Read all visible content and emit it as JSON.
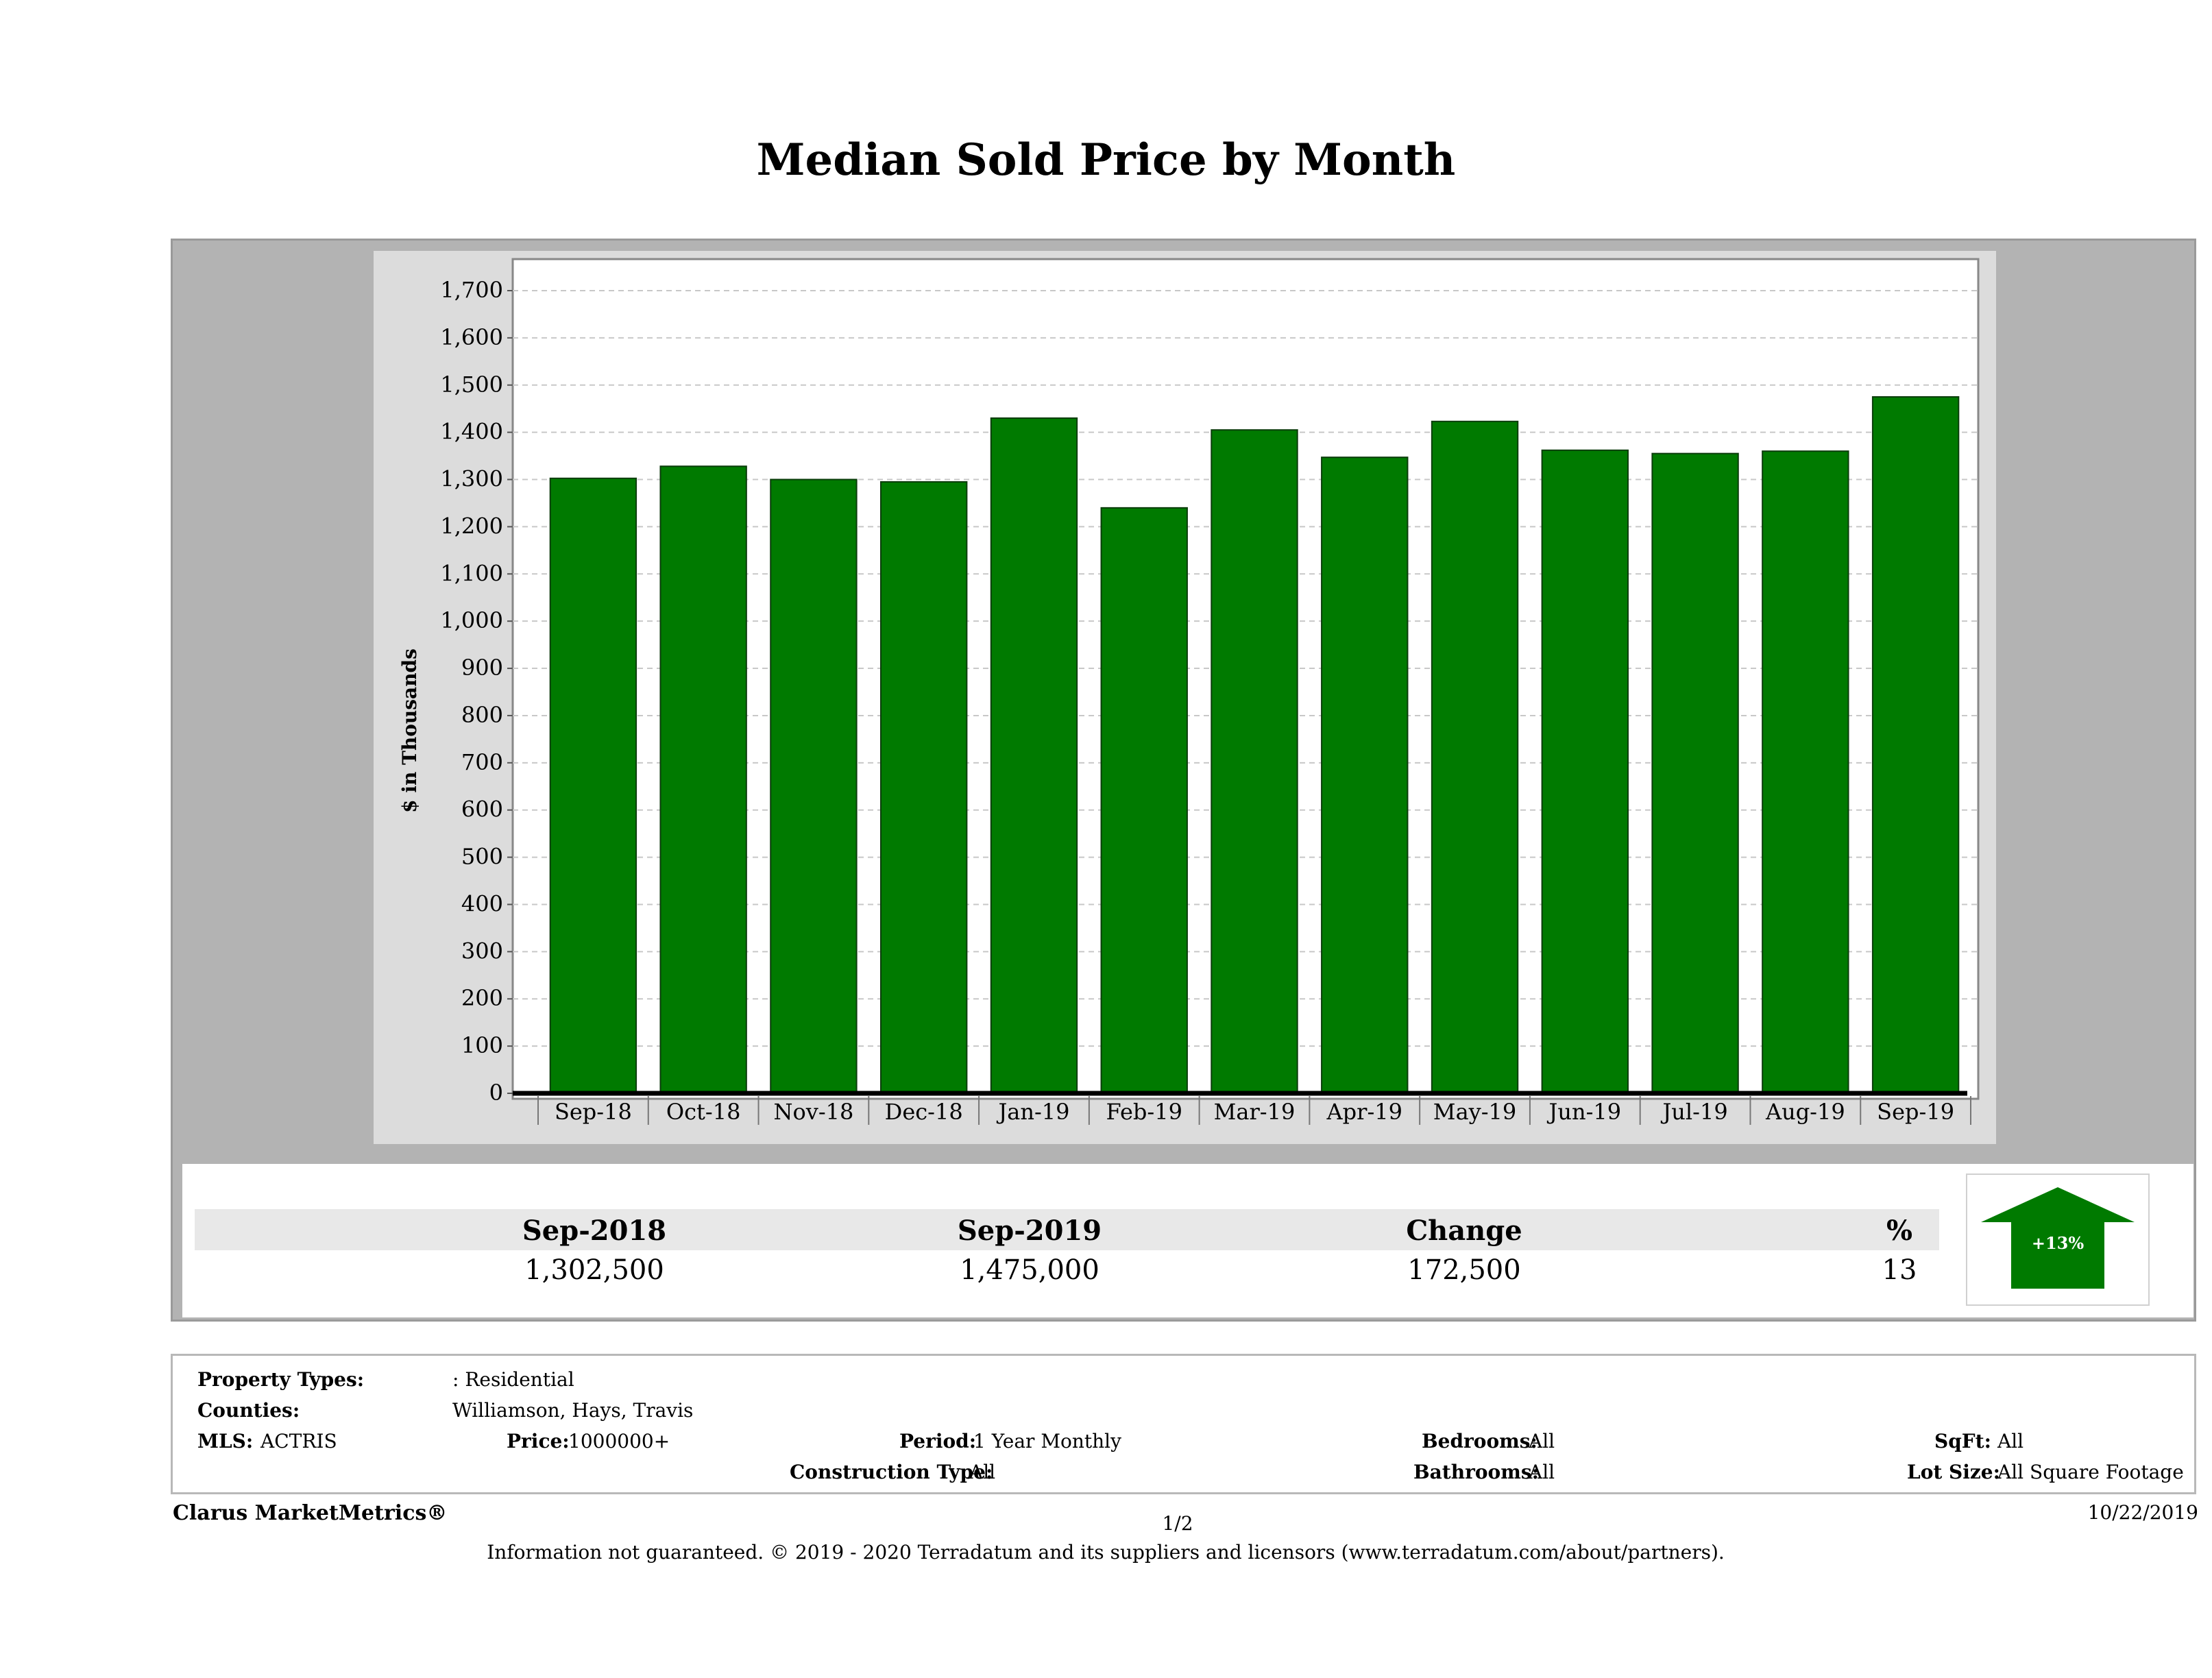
{
  "title": "Median Sold Price by Month",
  "chart_data": {
    "type": "bar",
    "title": "Median Sold Price by Month",
    "ylabel": "$ in Thousands",
    "xlabel": "",
    "categories": [
      "Sep-18",
      "Oct-18",
      "Nov-18",
      "Dec-18",
      "Jan-19",
      "Feb-19",
      "Mar-19",
      "Apr-19",
      "May-19",
      "Jun-19",
      "Jul-19",
      "Aug-19",
      "Sep-19"
    ],
    "values": [
      1302.5,
      1328,
      1300,
      1295,
      1430,
      1240,
      1405,
      1347,
      1423,
      1362,
      1355,
      1360,
      1475
    ],
    "ylim": [
      0,
      1760
    ],
    "yticks": [
      0,
      100,
      200,
      300,
      400,
      500,
      600,
      700,
      800,
      900,
      1000,
      1100,
      1200,
      1300,
      1400,
      1500,
      1600,
      1700
    ],
    "ytick_labels": [
      "0",
      "100",
      "200",
      "300",
      "400",
      "500",
      "600",
      "700",
      "800",
      "900",
      "1,000",
      "1,100",
      "1,200",
      "1,300",
      "1,400",
      "1,500",
      "1,600",
      "1,700"
    ],
    "grid": true,
    "bar_color": "#007a00"
  },
  "summary": {
    "col1_head": "Sep-2018",
    "col2_head": "Sep-2019",
    "col3_head": "Change",
    "col4_head": "%",
    "col1_val": "1,302,500",
    "col2_val": "1,475,000",
    "col3_val": "172,500",
    "col4_val": "13",
    "arrow_label": "+13%",
    "arrow_color": "#007a00"
  },
  "info": {
    "property_types_label": "Property Types:",
    "property_types_value": ": Residential",
    "counties_label": "Counties:",
    "counties_value": "Williamson, Hays, Travis",
    "mls_label": "MLS:",
    "mls_value": "ACTRIS",
    "price_label": "Price:",
    "price_value": "1000000+",
    "period_label": "Period:",
    "period_value": "1 Year Monthly",
    "construction_label": "Construction Type:",
    "construction_value": "All",
    "bedrooms_label": "Bedrooms:",
    "bedrooms_value": "All",
    "bathrooms_label": "Bathrooms:",
    "bathrooms_value": "All",
    "sqft_label": "SqFt:",
    "sqft_value": "All",
    "lot_label": "Lot Size:",
    "lot_value": "All Square Footage"
  },
  "footer": {
    "brand": "Clarus MarketMetrics®",
    "page": "1/2",
    "date": "10/22/2019",
    "disclaimer": "Information not guaranteed. © 2019 - 2020 Terradatum and its suppliers and licensors (www.terradatum.com/about/partners)."
  }
}
